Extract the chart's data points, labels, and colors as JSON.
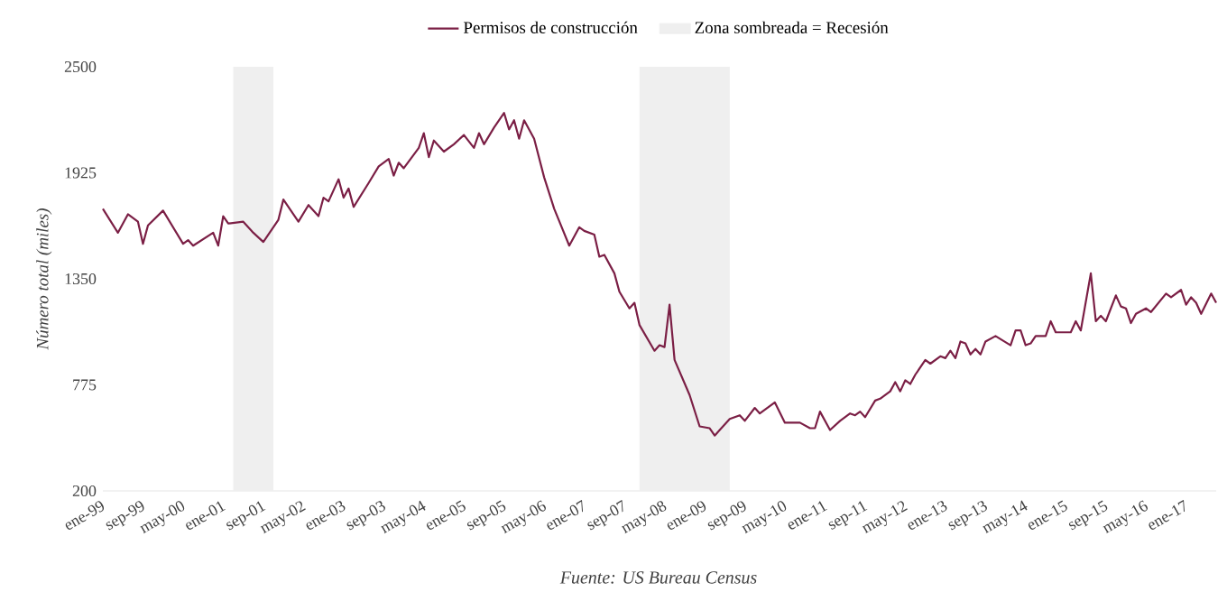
{
  "chart_data": {
    "type": "line",
    "ylabel": "Número total (miles)",
    "annotations": [
      "Fuente: US Bureau Census"
    ],
    "x": [
      "1999-01",
      "1999-04",
      "1999-06",
      "1999-08",
      "1999-09",
      "1999-10",
      "2000-01",
      "2000-05",
      "2000-06",
      "2000-07",
      "2000-11",
      "2000-12",
      "2001-01",
      "2001-02",
      "2001-05",
      "2001-07",
      "2001-09",
      "2001-12",
      "2002-01",
      "2002-04",
      "2002-06",
      "2002-08",
      "2002-09",
      "2002-10",
      "2002-12",
      "2003-01",
      "2003-02",
      "2003-03",
      "2003-06",
      "2003-08",
      "2003-10",
      "2003-11",
      "2003-12",
      "2004-01",
      "2004-04",
      "2004-05",
      "2004-06",
      "2004-07",
      "2004-09",
      "2004-11",
      "2005-01",
      "2005-03",
      "2005-04",
      "2005-05",
      "2005-07",
      "2005-09",
      "2005-10",
      "2005-11",
      "2005-12",
      "2006-01",
      "2006-03",
      "2006-05",
      "2006-07",
      "2006-10",
      "2006-12",
      "2007-01",
      "2007-03",
      "2007-04",
      "2007-05",
      "2007-07",
      "2007-08",
      "2007-10",
      "2007-11",
      "2007-12",
      "2008-03",
      "2008-04",
      "2008-05",
      "2008-06",
      "2008-07",
      "2008-10",
      "2008-12",
      "2009-02",
      "2009-03",
      "2009-04",
      "2009-06",
      "2009-08",
      "2009-09",
      "2009-11",
      "2009-12",
      "2010-03",
      "2010-05",
      "2010-08",
      "2010-10",
      "2010-11",
      "2010-12",
      "2011-02",
      "2011-04",
      "2011-06",
      "2011-07",
      "2011-08",
      "2011-09",
      "2011-11",
      "2011-12",
      "2012-02",
      "2012-03",
      "2012-04",
      "2012-05",
      "2012-06",
      "2012-07",
      "2012-09",
      "2012-10",
      "2012-12",
      "2013-01",
      "2013-02",
      "2013-03",
      "2013-04",
      "2013-05",
      "2013-06",
      "2013-07",
      "2013-08",
      "2013-09",
      "2013-11",
      "2014-02",
      "2014-03",
      "2014-04",
      "2014-05",
      "2014-06",
      "2014-07",
      "2014-09",
      "2014-10",
      "2014-11",
      "2015-02",
      "2015-03",
      "2015-04",
      "2015-06",
      "2015-07",
      "2015-08",
      "2015-09",
      "2015-11",
      "2015-12",
      "2016-01",
      "2016-02",
      "2016-03",
      "2016-05",
      "2016-06",
      "2016-09",
      "2016-10",
      "2016-12",
      "2017-01",
      "2017-02",
      "2017-03",
      "2017-04",
      "2017-06",
      "2017-07"
    ],
    "series": [
      {
        "name": "Permisos de construcción",
        "color": "#7b1f45",
        "values": [
          1730,
          1600,
          1700,
          1660,
          1540,
          1640,
          1720,
          1540,
          1560,
          1530,
          1600,
          1530,
          1690,
          1650,
          1660,
          1600,
          1550,
          1670,
          1780,
          1660,
          1750,
          1690,
          1790,
          1770,
          1890,
          1790,
          1840,
          1740,
          1870,
          1960,
          2000,
          1910,
          1980,
          1950,
          2060,
          2140,
          2010,
          2100,
          2040,
          2080,
          2130,
          2060,
          2140,
          2080,
          2170,
          2250,
          2160,
          2210,
          2110,
          2210,
          2110,
          1900,
          1730,
          1530,
          1630,
          1610,
          1590,
          1470,
          1480,
          1380,
          1280,
          1190,
          1220,
          1100,
          960,
          990,
          980,
          1210,
          910,
          720,
          550,
          540,
          500,
          530,
          590,
          610,
          580,
          650,
          620,
          680,
          570,
          570,
          540,
          540,
          630,
          530,
          580,
          620,
          610,
          630,
          600,
          690,
          700,
          740,
          790,
          740,
          800,
          780,
          830,
          910,
          890,
          930,
          920,
          960,
          920,
          1010,
          1000,
          940,
          970,
          940,
          1010,
          1040,
          990,
          1070,
          1070,
          990,
          1000,
          1040,
          1040,
          1120,
          1060,
          1060,
          1120,
          1070,
          1380,
          1120,
          1150,
          1120,
          1260,
          1200,
          1190,
          1110,
          1160,
          1190,
          1170,
          1270,
          1250,
          1290,
          1210,
          1250,
          1220,
          1160,
          1270,
          1220
        ]
      }
    ],
    "xticks": [
      {
        "value": "1999-01",
        "label": "ene-99"
      },
      {
        "value": "1999-09",
        "label": "sep-99"
      },
      {
        "value": "2000-05",
        "label": "may-00"
      },
      {
        "value": "2001-01",
        "label": "ene-01"
      },
      {
        "value": "2001-09",
        "label": "sep-01"
      },
      {
        "value": "2002-05",
        "label": "may-02"
      },
      {
        "value": "2003-01",
        "label": "ene-03"
      },
      {
        "value": "2003-09",
        "label": "sep-03"
      },
      {
        "value": "2004-05",
        "label": "may-04"
      },
      {
        "value": "2005-01",
        "label": "ene-05"
      },
      {
        "value": "2005-09",
        "label": "sep-05"
      },
      {
        "value": "2006-05",
        "label": "may-06"
      },
      {
        "value": "2007-01",
        "label": "ene-07"
      },
      {
        "value": "2007-09",
        "label": "sep-07"
      },
      {
        "value": "2008-05",
        "label": "may-08"
      },
      {
        "value": "2009-01",
        "label": "ene-09"
      },
      {
        "value": "2009-09",
        "label": "sep-09"
      },
      {
        "value": "2010-05",
        "label": "may-10"
      },
      {
        "value": "2011-01",
        "label": "ene-11"
      },
      {
        "value": "2011-09",
        "label": "sep-11"
      },
      {
        "value": "2012-05",
        "label": "may-12"
      },
      {
        "value": "2013-01",
        "label": "ene-13"
      },
      {
        "value": "2013-09",
        "label": "sep-13"
      },
      {
        "value": "2014-05",
        "label": "may-14"
      },
      {
        "value": "2015-01",
        "label": "ene-15"
      },
      {
        "value": "2015-09",
        "label": "sep-15"
      },
      {
        "value": "2016-05",
        "label": "may-16"
      },
      {
        "value": "2017-01",
        "label": "ene-17"
      }
    ],
    "xlim": [
      "1999-01",
      "2017-07"
    ],
    "ylim": [
      200,
      2500
    ],
    "yticks": [
      200,
      775,
      1350,
      1925,
      2500
    ],
    "bands": [
      {
        "axis": "x",
        "from": "2001-03",
        "to": "2001-11",
        "label": "Zona sombreada = Recesión",
        "color": "#efefef"
      },
      {
        "axis": "x",
        "from": "2007-12",
        "to": "2009-06",
        "color": "#efefef"
      }
    ],
    "legend": "top",
    "line_style": "solid"
  }
}
